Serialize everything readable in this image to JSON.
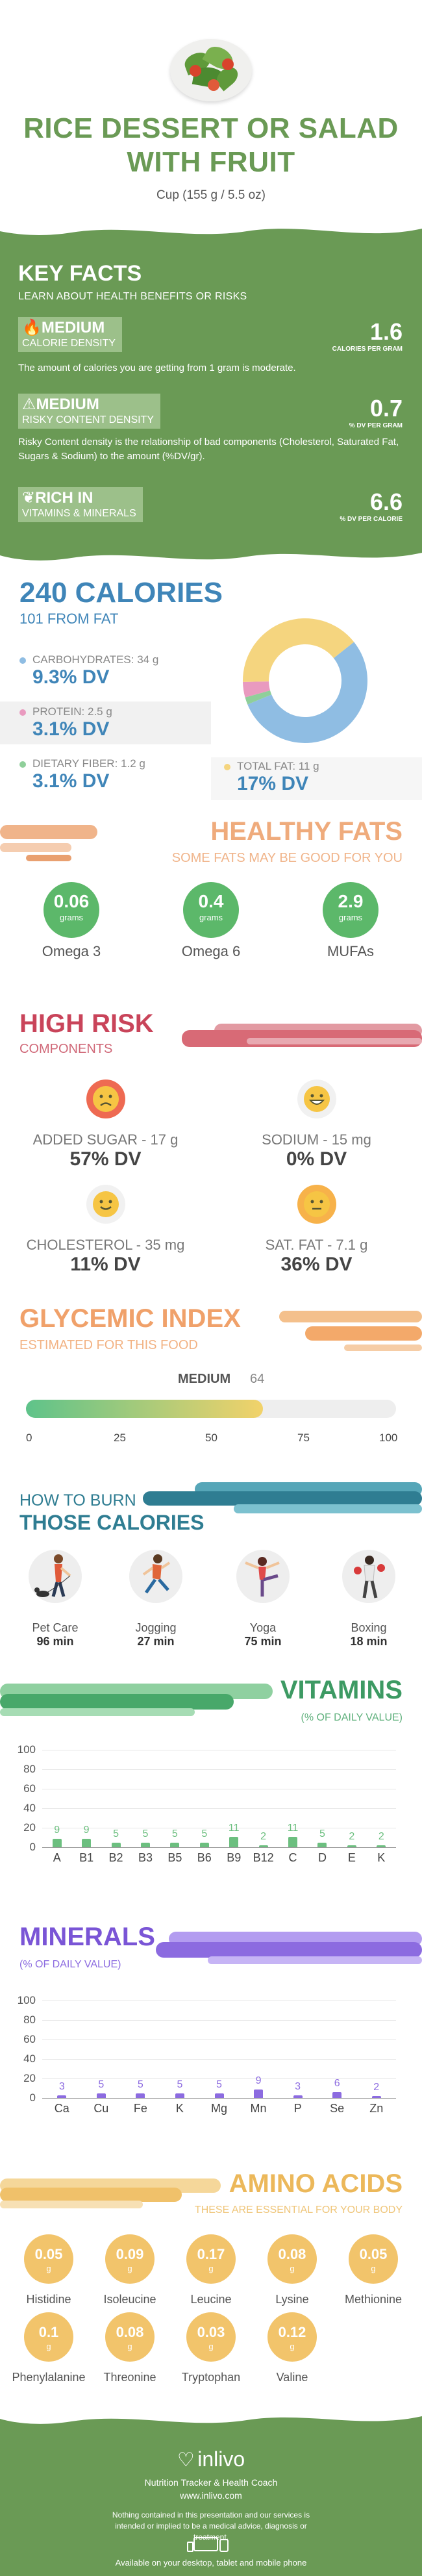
{
  "header": {
    "title": "RICE DESSERT OR SALAD WITH FRUIT",
    "serving": "Cup (155 g / 5.5 oz)"
  },
  "key_facts": {
    "title": "KEY FACTS",
    "subtitle": "LEARN ABOUT HEALTH BENEFITS OR RISKS",
    "calorie_density": {
      "level": "MEDIUM",
      "label": "CALORIE DENSITY",
      "value": "1.6",
      "unit": "CALORIES PER GRAM",
      "desc": "The amount of calories you are getting from 1 gram is moderate."
    },
    "risky": {
      "level": "MEDIUM",
      "label": "RISKY CONTENT DENSITY",
      "value": "0.7",
      "unit": "% DV PER GRAM",
      "desc": "Risky Content density is the relationship of bad components (Cholesterol, Saturated Fat, Sugars & Sodium) to the amount (%DV/gr)."
    },
    "rich": {
      "level": "RICH  IN",
      "label": "VITAMINS & MINERALS",
      "value": "6.6",
      "unit": "% DV PER CALORIE"
    }
  },
  "calories": {
    "total": "240 CALORIES",
    "from_fat": "101 FROM FAT",
    "carbs": {
      "label": "CARBOHYDRATES: 34 g",
      "dv": "9.3% DV",
      "color": "#8fbde3"
    },
    "protein": {
      "label": "PROTEIN: 2.5 g",
      "dv": "3.1% DV",
      "color": "#e99abf"
    },
    "fiber": {
      "label": "DIETARY FIBER: 1.2 g",
      "dv": "3.1% DV",
      "color": "#8fcf9a"
    },
    "fat": {
      "label": "TOTAL FAT: 11 g",
      "dv": "17% DV",
      "color": "#f5d57f"
    }
  },
  "fats": {
    "title": "HEALTHY FATS",
    "subtitle": "SOME FATS MAY BE GOOD FOR YOU",
    "items": [
      {
        "value": "0.06",
        "unit": "grams",
        "name": "Omega 3"
      },
      {
        "value": "0.4",
        "unit": "grams",
        "name": "Omega 6"
      },
      {
        "value": "2.9",
        "unit": "grams",
        "name": "MUFAs"
      }
    ]
  },
  "risk": {
    "title": "HIGH RISK",
    "subtitle": "COMPONENTS",
    "items": [
      {
        "label": "ADDED SUGAR - 17 g",
        "dv": "57% DV",
        "face": "sad-face-icon"
      },
      {
        "label": "SODIUM - 15 mg",
        "dv": "0% DV",
        "face": "grin-face-icon"
      },
      {
        "label": "CHOLESTEROL - 35 mg",
        "dv": "11% DV",
        "face": "smile-face-icon"
      },
      {
        "label": "SAT. FAT - 7.1 g",
        "dv": "36% DV",
        "face": "neutral-face-icon"
      }
    ]
  },
  "glycemic": {
    "title": "GLYCEMIC INDEX",
    "subtitle": "ESTIMATED FOR THIS FOOD",
    "level": "MEDIUM",
    "value": 64,
    "ticks": [
      "0",
      "25",
      "50",
      "75",
      "100"
    ]
  },
  "burn": {
    "title1": "HOW TO BURN",
    "title2": "THOSE CALORIES",
    "items": [
      {
        "name": "Pet Care",
        "time": "96 min"
      },
      {
        "name": "Jogging",
        "time": "27 min"
      },
      {
        "name": "Yoga",
        "time": "75 min"
      },
      {
        "name": "Boxing",
        "time": "18 min"
      }
    ]
  },
  "vitamins": {
    "title": "VITAMINS",
    "subtitle": "(% OF DAILY VALUE)",
    "color": "#6cbf7f",
    "chart_data": {
      "type": "bar",
      "categories": [
        "A",
        "B1",
        "B2",
        "B3",
        "B5",
        "B6",
        "B9",
        "B12",
        "C",
        "D",
        "E",
        "K"
      ],
      "values": [
        9,
        9,
        5,
        5,
        5,
        5,
        11,
        2,
        11,
        5,
        2,
        2
      ],
      "yticks": [
        "100",
        "80",
        "60",
        "40",
        "20",
        "0"
      ],
      "ylim": [
        0,
        100
      ]
    }
  },
  "minerals": {
    "title": "MINERALS",
    "subtitle": "(% OF DAILY VALUE)",
    "color": "#8c6be0",
    "chart_data": {
      "type": "bar",
      "categories": [
        "Ca",
        "Cu",
        "Fe",
        "K",
        "Mg",
        "Mn",
        "P",
        "Se",
        "Zn"
      ],
      "values": [
        3,
        5,
        5,
        5,
        5,
        9,
        3,
        6,
        2
      ],
      "yticks": [
        "100",
        "80",
        "60",
        "40",
        "20",
        "0"
      ],
      "ylim": [
        0,
        100
      ]
    }
  },
  "amino": {
    "title": "AMINO ACIDS",
    "subtitle": "THESE ARE ESSENTIAL FOR YOUR BODY",
    "unit": "g",
    "items": [
      {
        "value": "0.05",
        "name": "Histidine"
      },
      {
        "value": "0.09",
        "name": "Isoleucine"
      },
      {
        "value": "0.17",
        "name": "Leucine"
      },
      {
        "value": "0.08",
        "name": "Lysine"
      },
      {
        "value": "0.05",
        "name": "Methionine"
      },
      {
        "value": "0.1",
        "name": "Phenylalanine"
      },
      {
        "value": "0.08",
        "name": "Threonine"
      },
      {
        "value": "0.03",
        "name": "Tryptophan"
      },
      {
        "value": "0.12",
        "name": "Valine"
      }
    ]
  },
  "footer": {
    "brand": "inlivo",
    "tagline": "Nutrition Tracker & Health Coach",
    "url": "www.inlivo.com",
    "disclaimer": "Nothing contained in this presentation and our services is intended or implied to be a medical advice, diagnosis or treatment.",
    "available": "Available on your desktop, tablet and mobile phone"
  }
}
